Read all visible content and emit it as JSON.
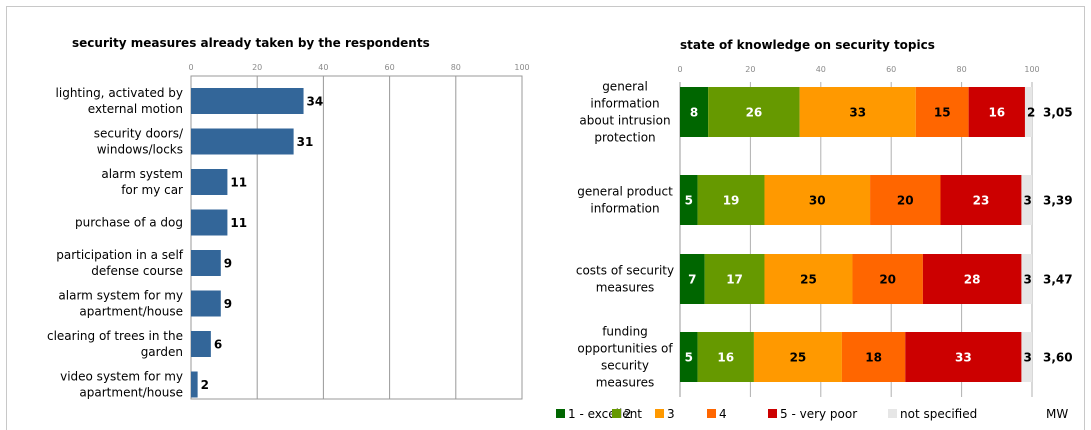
{
  "chart_data": [
    {
      "type": "bar",
      "orientation": "horizontal",
      "title": "security measures already taken by the respondents",
      "xlim": [
        0,
        100
      ],
      "xticks": [
        "0",
        "20",
        "40",
        "60",
        "80",
        "100"
      ],
      "grid": true,
      "bar_color": "#336699",
      "categories": [
        [
          "lighting, activated by",
          "external motion"
        ],
        [
          "security doors/",
          "windows/locks"
        ],
        [
          "alarm system",
          "for my car"
        ],
        [
          "purchase of a dog"
        ],
        [
          "participation in a self",
          "defense course"
        ],
        [
          "alarm system for my",
          "apartment/house"
        ],
        [
          "clearing of trees in the",
          "garden"
        ],
        [
          "video system for my",
          "apartment/house"
        ]
      ],
      "values": [
        34,
        31,
        11,
        11,
        9,
        9,
        6,
        2
      ]
    },
    {
      "type": "bar",
      "orientation": "horizontal",
      "stacked": true,
      "title": "state of knowledge on security topics",
      "xlim": [
        0,
        100
      ],
      "xticks": [
        "0",
        "20",
        "40",
        "60",
        "80",
        "100"
      ],
      "grid": true,
      "legend_position": "bottom",
      "categories": [
        [
          "general",
          "information",
          "about intrusion",
          "protection"
        ],
        [
          "general product",
          "information"
        ],
        [
          "costs of security",
          "measures"
        ],
        [
          "funding",
          "opportunities of",
          "security",
          "measures"
        ]
      ],
      "series": [
        {
          "name": "1 - excellent",
          "color": "#006600",
          "label_color": "#ffffff",
          "values": [
            8,
            5,
            7,
            5
          ]
        },
        {
          "name": "2",
          "color": "#669900",
          "label_color": "#ffffff",
          "values": [
            26,
            19,
            17,
            16
          ]
        },
        {
          "name": "3",
          "color": "#ff9900",
          "label_color": "#000000",
          "values": [
            33,
            30,
            25,
            25
          ]
        },
        {
          "name": "4",
          "color": "#ff6600",
          "label_color": "#000000",
          "values": [
            15,
            20,
            20,
            18
          ]
        },
        {
          "name": "5 - very poor",
          "color": "#cc0000",
          "label_color": "#ffffff",
          "values": [
            16,
            23,
            28,
            33
          ]
        },
        {
          "name": "not specified",
          "color": "#e6e6e6",
          "label_color": "#000000",
          "values": [
            2,
            3,
            3,
            3
          ]
        }
      ],
      "mw_label": "MW",
      "mw_values": [
        "3,05",
        "3,39",
        "3,47",
        "3,60"
      ]
    }
  ]
}
